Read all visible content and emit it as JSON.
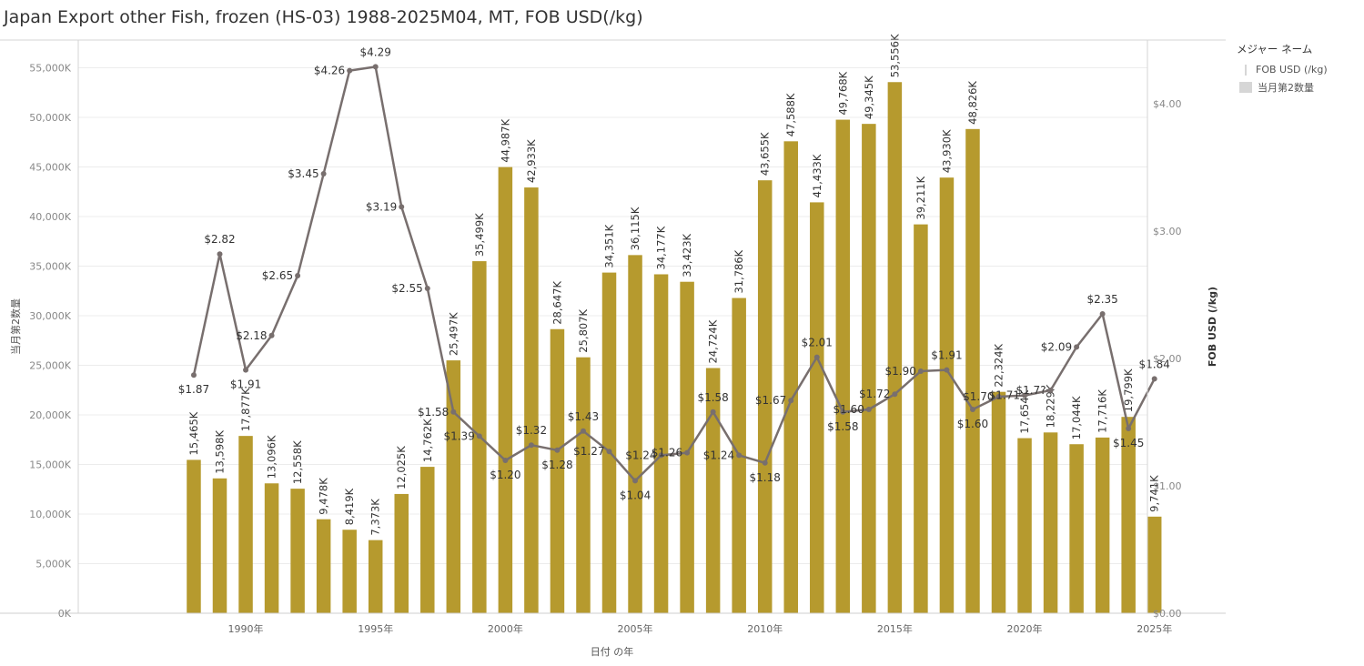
{
  "title": "Japan Export other Fish, frozen (HS-03) 1988-2025M04, MT, FOB USD(/kg)",
  "legend": {
    "title": "メジャー ネーム",
    "items": [
      {
        "label": "FOB USD (/kg)",
        "swatch": "line"
      },
      {
        "label": "当月第2数量",
        "swatch": "bar"
      }
    ]
  },
  "chart_data": {
    "type": "bar+line",
    "xlabel": "日付 の年",
    "ylabel_left": "当月第2数量",
    "ylabel_right": "FOB USD (/kg)",
    "ylim_left": [
      0,
      57800
    ],
    "ylim_right": [
      0,
      4.5
    ],
    "y_ticks_left": [
      "0K",
      "5,000K",
      "10,000K",
      "15,000K",
      "20,000K",
      "25,000K",
      "30,000K",
      "35,000K",
      "40,000K",
      "45,000K",
      "50,000K",
      "55,000K"
    ],
    "y_tick_values_left": [
      0,
      5000,
      10000,
      15000,
      20000,
      25000,
      30000,
      35000,
      40000,
      45000,
      50000,
      55000
    ],
    "y_ticks_right": [
      "$0.00",
      "$1.00",
      "$2.00",
      "$3.00",
      "$4.00"
    ],
    "y_tick_values_right": [
      0,
      1,
      2,
      3,
      4
    ],
    "x_ticks": [
      "1990年",
      "1995年",
      "2000年",
      "2005年",
      "2010年",
      "2015年",
      "2020年",
      "2025年"
    ],
    "x_tick_years": [
      1990,
      1995,
      2000,
      2005,
      2010,
      2015,
      2020,
      2025
    ],
    "years": [
      1988,
      1989,
      1990,
      1991,
      1992,
      1993,
      1994,
      1995,
      1996,
      1997,
      1998,
      1999,
      2000,
      2001,
      2002,
      2003,
      2004,
      2005,
      2006,
      2007,
      2008,
      2009,
      2010,
      2011,
      2012,
      2013,
      2014,
      2015,
      2016,
      2017,
      2018,
      2019,
      2020,
      2021,
      2022,
      2023,
      2024,
      2025
    ],
    "series": [
      {
        "name": "当月第2数量",
        "kind": "bar",
        "color": "#b69a2e",
        "values": [
          15465,
          13598,
          17877,
          13096,
          12558,
          9478,
          8419,
          7373,
          12025,
          14762,
          25497,
          35499,
          44987,
          42933,
          28647,
          25807,
          34351,
          36115,
          34177,
          33423,
          24724,
          31786,
          43655,
          47588,
          41433,
          49768,
          49345,
          53556,
          39211,
          43930,
          48826,
          22324,
          17654,
          18229,
          17044,
          17716,
          19799,
          9741
        ],
        "labels": [
          "15,465K",
          "13,598K",
          "17,877K",
          "13,096K",
          "12,558K",
          "9,478K",
          "8,419K",
          "7,373K",
          "12,025K",
          "14,762K",
          "25,497K",
          "35,499K",
          "44,987K",
          "42,933K",
          "28,647K",
          "25,807K",
          "34,351K",
          "36,115K",
          "34,177K",
          "33,423K",
          "24,724K",
          "31,786K",
          "43,655K",
          "47,588K",
          "41,433K",
          "49,768K",
          "49,345K",
          "53,556K",
          "39,211K",
          "43,930K",
          "48,826K",
          "22,324K",
          "17,654K",
          "18,229K",
          "17,044K",
          "17,716K",
          "19,799K",
          "9,741K"
        ]
      },
      {
        "name": "FOB USD (/kg)",
        "kind": "line",
        "color": "#786f6e",
        "values": [
          1.87,
          2.82,
          1.91,
          2.18,
          2.65,
          3.45,
          4.26,
          4.29,
          3.19,
          2.55,
          1.58,
          1.39,
          1.2,
          1.32,
          1.28,
          1.43,
          1.27,
          1.04,
          1.24,
          1.26,
          1.58,
          1.24,
          1.18,
          1.67,
          2.01,
          1.58,
          1.6,
          1.72,
          1.9,
          1.91,
          1.6,
          1.7,
          1.71,
          1.75,
          2.09,
          2.35,
          1.45,
          1.84
        ],
        "labels": [
          "$1.87",
          "$2.82",
          "$1.91",
          "$2.18",
          "$2.65",
          "$3.45",
          "$4.26",
          "$4.29",
          "$3.19",
          "$2.55",
          "$1.58",
          "$1.39",
          "$1.20",
          "$1.32",
          "$1.28",
          "$1.43",
          "$1.27",
          "$1.04",
          "$1.24",
          "$1.26",
          "$1.58",
          "$1.24",
          "$1.18",
          "$1.67",
          "$2.01",
          "$1.58",
          "$1.60",
          "$1.72",
          "$1.90",
          "$1.91",
          "$1.60",
          "$1.70",
          "$1.71",
          "$1.7?",
          "$2.09",
          "$2.35",
          "$1.45",
          "$1.84"
        ]
      }
    ]
  }
}
